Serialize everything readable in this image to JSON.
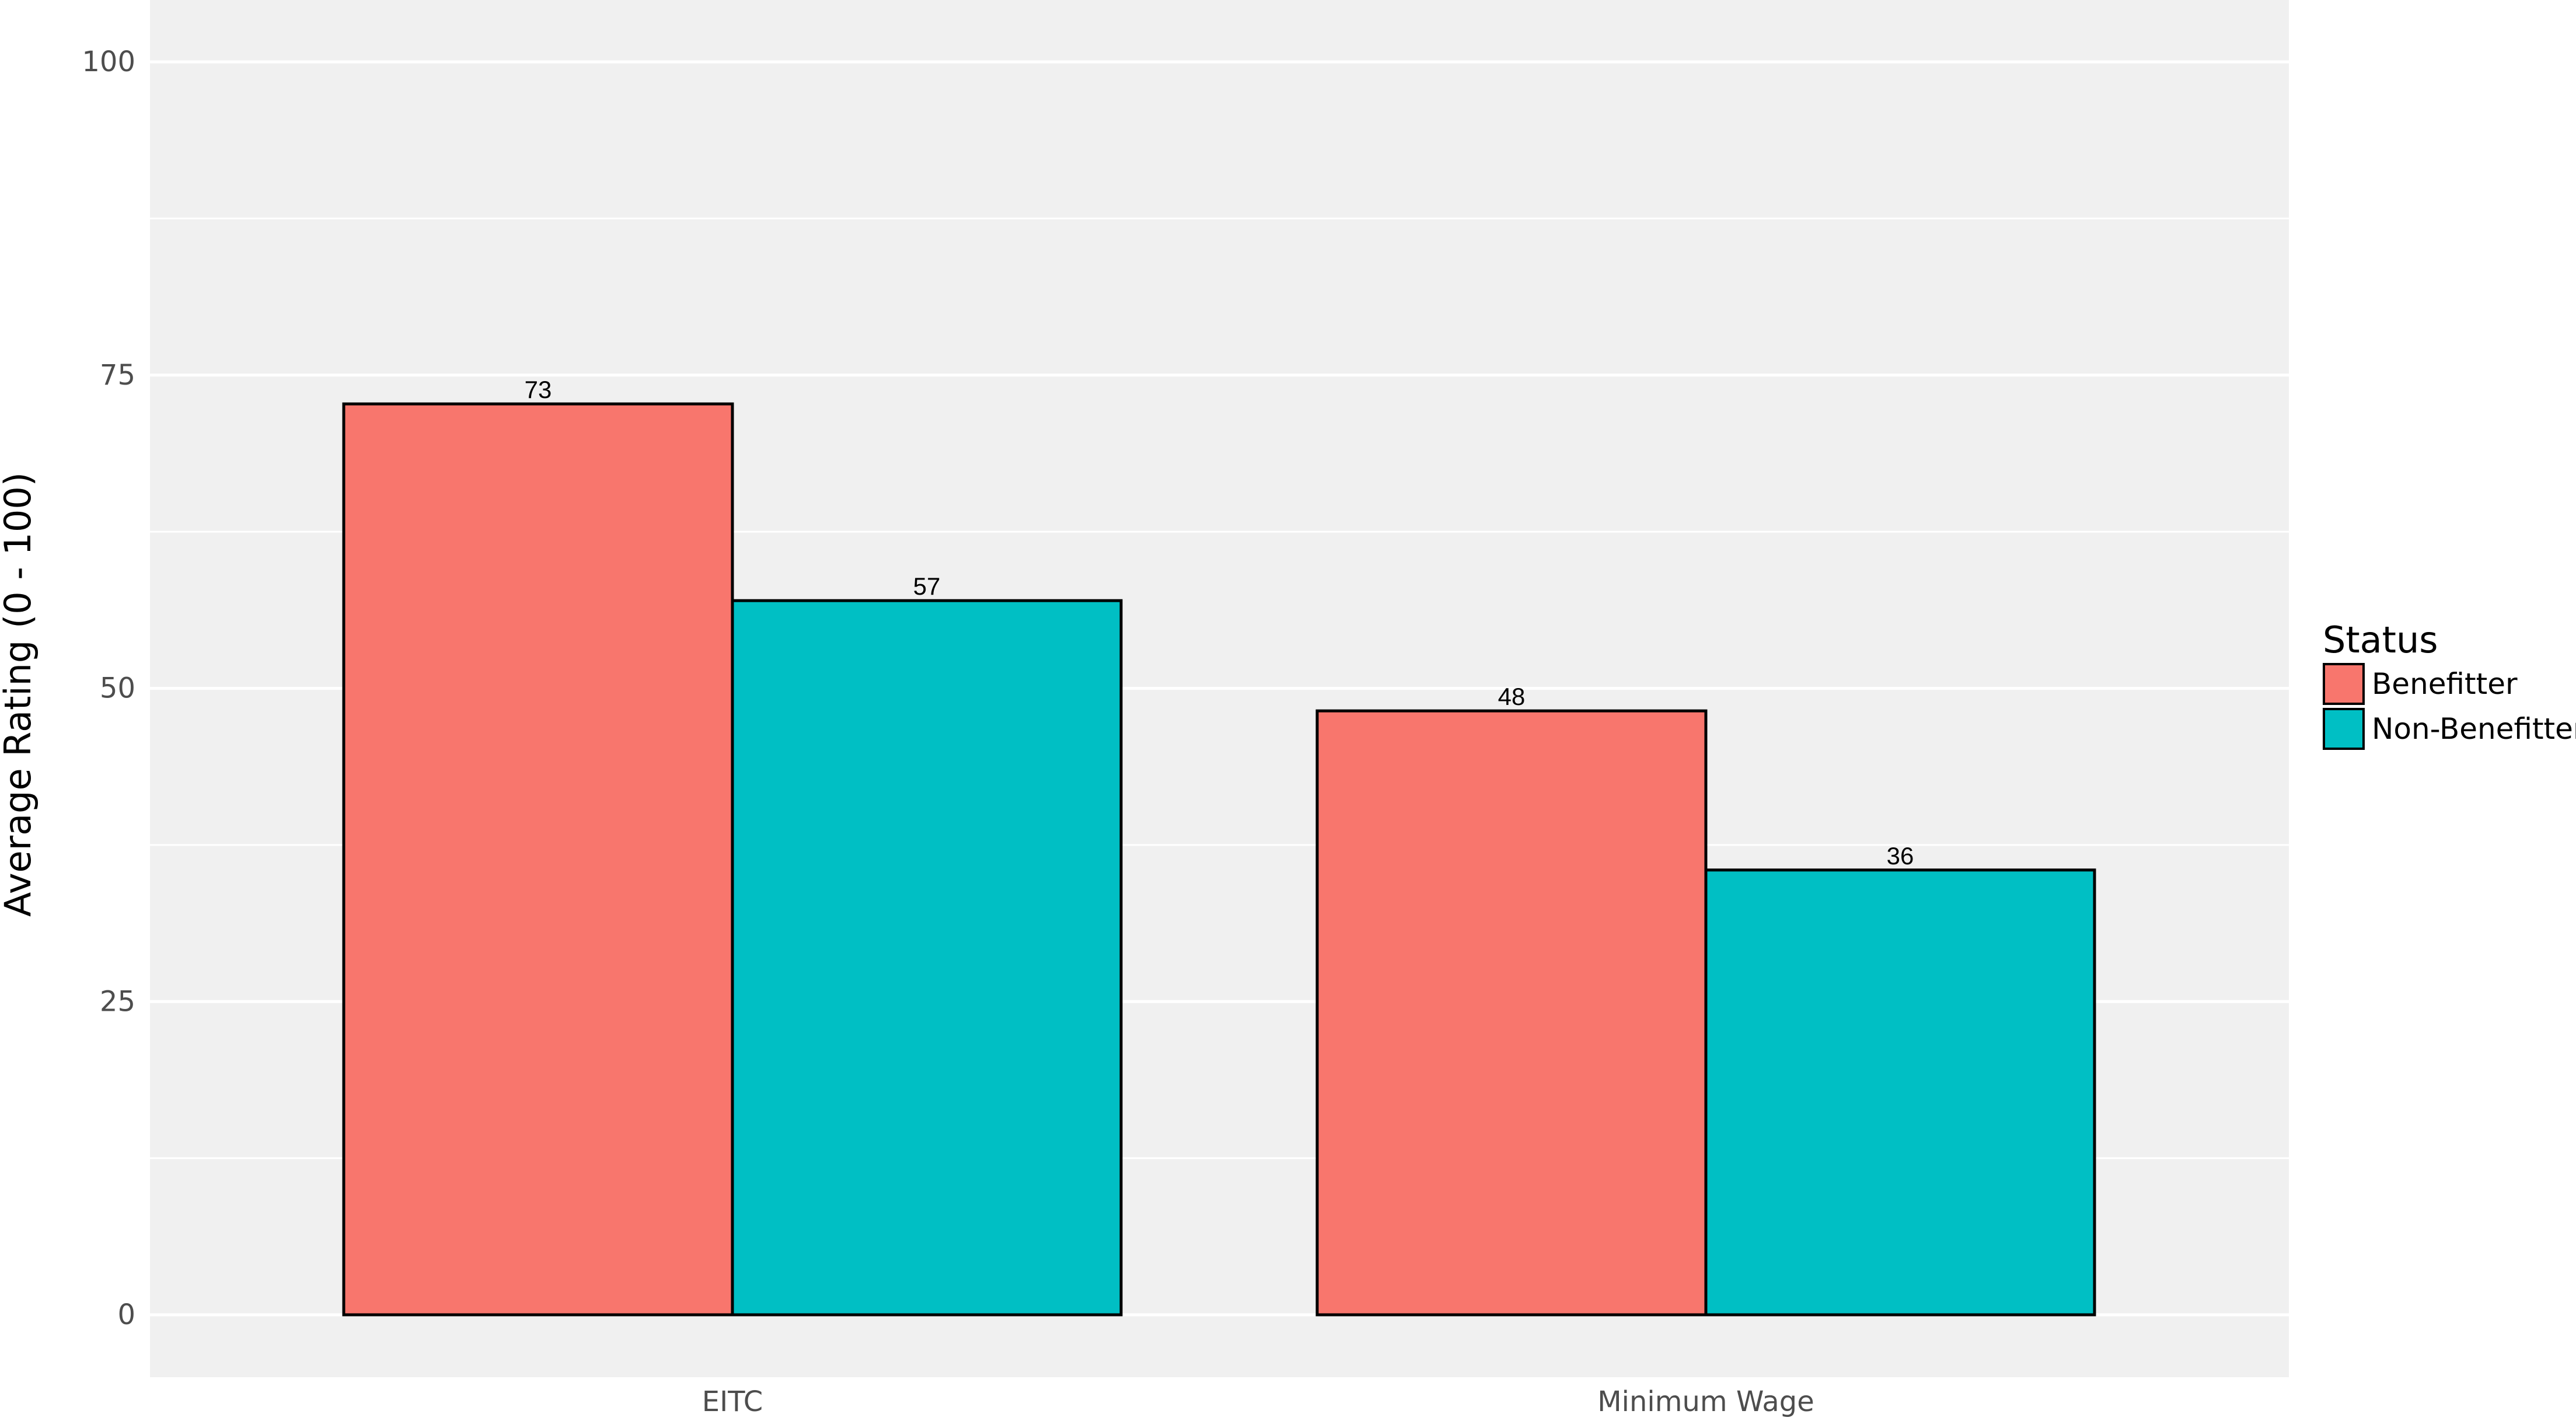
{
  "chart_data": {
    "type": "bar",
    "categories": [
      "EITC",
      "Minimum Wage"
    ],
    "series": [
      {
        "name": "Benefitter",
        "values": [
          73,
          48
        ],
        "labels": [
          "73",
          "48"
        ],
        "color": "#F8766D"
      },
      {
        "name": "Non-Benefitter",
        "values": [
          57,
          36
        ],
        "labels": [
          "57",
          "36"
        ],
        "color": "#00BFC4"
      }
    ],
    "plot_values": [
      [
        72.7,
        48.2
      ],
      [
        57.0,
        35.5
      ]
    ],
    "xlabel": "",
    "ylabel": "Average Rating (0 - 100)",
    "ylim": [
      -5,
      105
    ],
    "yticks": [
      0,
      25,
      50,
      75,
      100
    ],
    "grid": true,
    "legend": {
      "title": "Status",
      "placement": "right"
    },
    "panel_color": "#F0F0F0",
    "grid_color": "#FFFFFF"
  }
}
